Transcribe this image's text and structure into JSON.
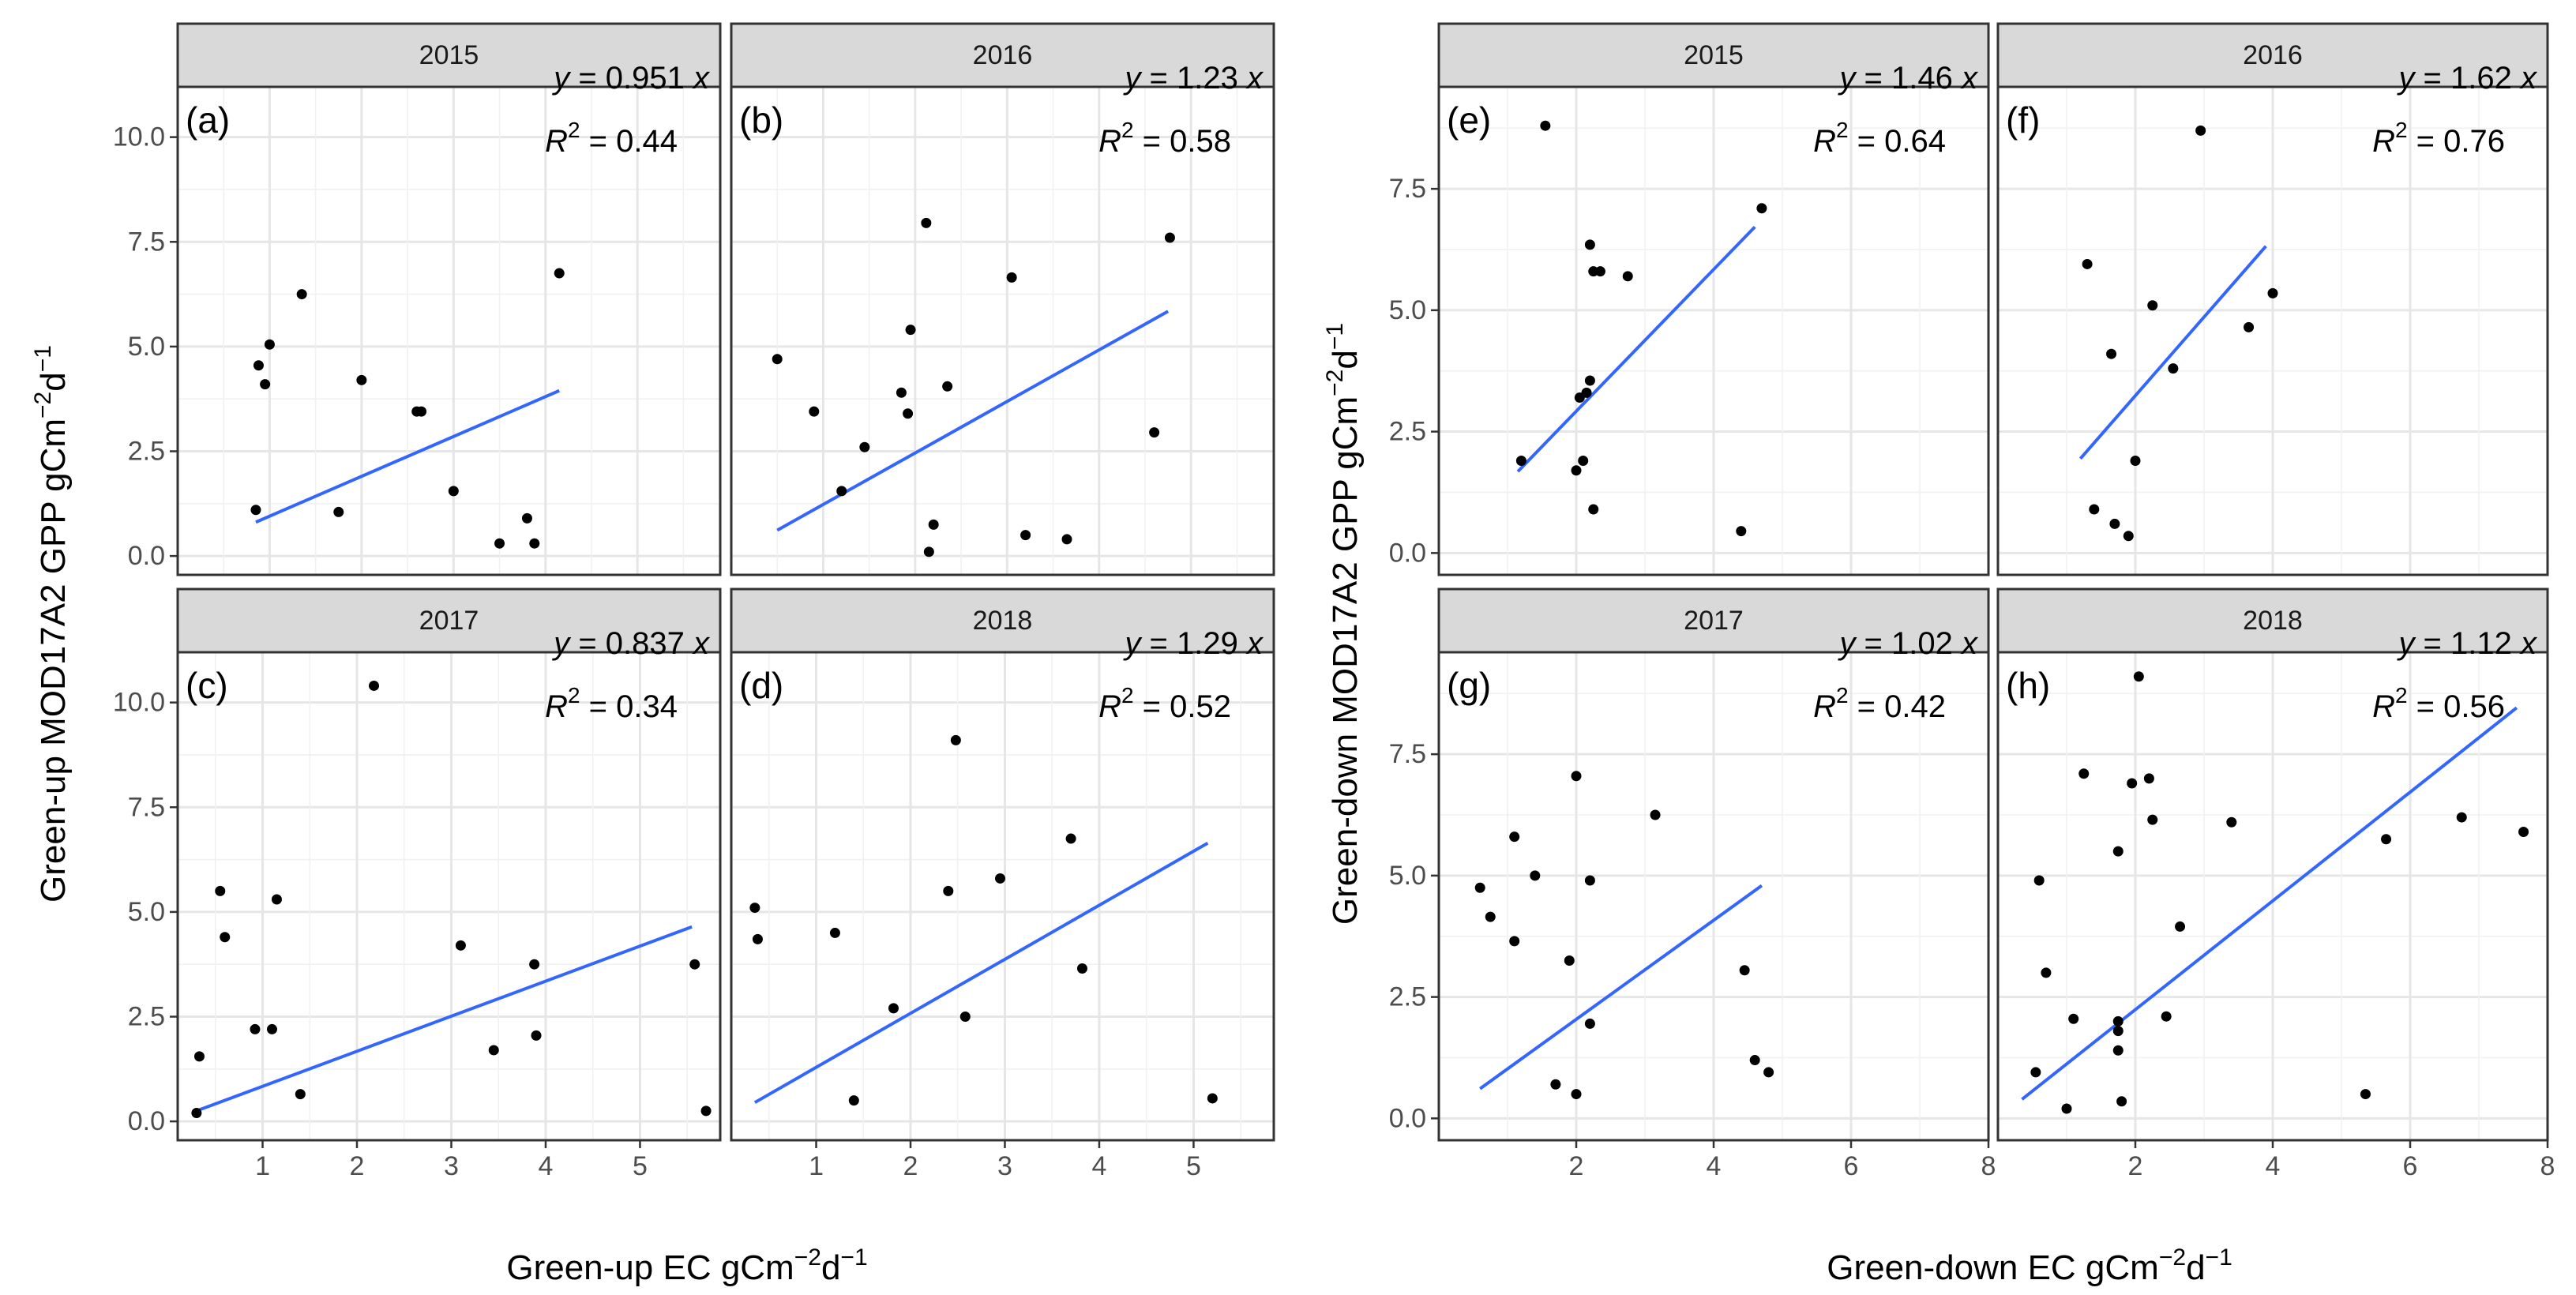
{
  "chart_data": [
    {
      "type": "scatter",
      "group": "green-up",
      "year": "2015",
      "tag": "(a)",
      "equation": {
        "y": "y",
        "rhs": " = 0.951 ",
        "x": "x"
      },
      "r2": {
        "label": "R",
        "sup": "2",
        "value": " = 0.44"
      },
      "slope": 0.951,
      "line_x": [
        0.85,
        4.15
      ],
      "points": [
        [
          0.85,
          1.1
        ],
        [
          0.88,
          4.55
        ],
        [
          0.95,
          4.1
        ],
        [
          1.0,
          5.05
        ],
        [
          1.35,
          6.25
        ],
        [
          1.75,
          1.05
        ],
        [
          2.0,
          4.2
        ],
        [
          2.6,
          3.45
        ],
        [
          2.65,
          3.45
        ],
        [
          3.0,
          1.55
        ],
        [
          3.5,
          0.3
        ],
        [
          3.8,
          0.9
        ],
        [
          3.88,
          0.3
        ],
        [
          4.15,
          6.75
        ]
      ]
    },
    {
      "type": "scatter",
      "group": "green-up",
      "year": "2016",
      "tag": "(b)",
      "equation": {
        "y": "y",
        "rhs": " = 1.23 ",
        "x": "x"
      },
      "r2": {
        "label": "R",
        "sup": "2",
        "value": " = 0.58"
      },
      "slope": 1.23,
      "line_x": [
        0.5,
        4.75
      ],
      "points": [
        [
          0.5,
          4.7
        ],
        [
          0.9,
          3.45
        ],
        [
          1.2,
          1.55
        ],
        [
          1.45,
          2.6
        ],
        [
          1.85,
          3.9
        ],
        [
          1.92,
          3.4
        ],
        [
          1.95,
          5.4
        ],
        [
          2.12,
          7.95
        ],
        [
          2.15,
          0.1
        ],
        [
          2.2,
          0.75
        ],
        [
          2.35,
          4.05
        ],
        [
          3.05,
          6.65
        ],
        [
          3.2,
          0.5
        ],
        [
          3.65,
          0.4
        ],
        [
          4.6,
          2.95
        ],
        [
          4.77,
          7.6
        ]
      ]
    },
    {
      "type": "scatter",
      "group": "green-up",
      "year": "2017",
      "tag": "(c)",
      "equation": {
        "y": "y",
        "rhs": " = 0.837 ",
        "x": "x"
      },
      "r2": {
        "label": "R",
        "sup": "2",
        "value": " = 0.34"
      },
      "slope": 0.837,
      "line_x": [
        0.3,
        5.55
      ],
      "points": [
        [
          0.3,
          0.2
        ],
        [
          0.33,
          1.55
        ],
        [
          0.55,
          5.5
        ],
        [
          0.6,
          4.4
        ],
        [
          0.92,
          2.2
        ],
        [
          1.1,
          2.2
        ],
        [
          1.15,
          5.3
        ],
        [
          1.4,
          0.65
        ],
        [
          2.18,
          10.4
        ],
        [
          3.1,
          4.2
        ],
        [
          3.45,
          1.7
        ],
        [
          3.88,
          3.75
        ],
        [
          3.9,
          2.05
        ],
        [
          5.58,
          3.75
        ],
        [
          5.7,
          0.25
        ]
      ]
    },
    {
      "type": "scatter",
      "group": "green-up",
      "year": "2018",
      "tag": "(d)",
      "equation": {
        "y": "y",
        "rhs": " = 1.29 ",
        "x": "x"
      },
      "r2": {
        "label": "R",
        "sup": "2",
        "value": " = 0.52"
      },
      "slope": 1.29,
      "line_x": [
        0.35,
        5.15
      ],
      "points": [
        [
          0.35,
          5.1
        ],
        [
          0.38,
          4.35
        ],
        [
          1.2,
          4.5
        ],
        [
          1.4,
          0.5
        ],
        [
          1.82,
          2.7
        ],
        [
          2.4,
          5.5
        ],
        [
          2.48,
          9.1
        ],
        [
          2.58,
          2.5
        ],
        [
          2.95,
          5.8
        ],
        [
          3.7,
          6.75
        ],
        [
          3.82,
          3.65
        ],
        [
          5.2,
          0.55
        ]
      ]
    },
    {
      "type": "scatter",
      "group": "green-down",
      "year": "2015",
      "tag": "(e)",
      "equation": {
        "y": "y",
        "rhs": " = 1.46 ",
        "x": "x"
      },
      "r2": {
        "label": "R",
        "sup": "2",
        "value": " = 0.64"
      },
      "slope": 1.46,
      "line_x": [
        1.15,
        4.6
      ],
      "points": [
        [
          1.2,
          1.9
        ],
        [
          1.55,
          8.8
        ],
        [
          2.0,
          1.7
        ],
        [
          2.05,
          3.2
        ],
        [
          2.1,
          1.9
        ],
        [
          2.15,
          3.3
        ],
        [
          2.2,
          6.35
        ],
        [
          2.2,
          3.55
        ],
        [
          2.25,
          0.9
        ],
        [
          2.25,
          5.8
        ],
        [
          2.35,
          5.8
        ],
        [
          2.75,
          5.7
        ],
        [
          4.4,
          0.45
        ],
        [
          4.7,
          7.1
        ]
      ]
    },
    {
      "type": "scatter",
      "group": "green-down",
      "year": "2016",
      "tag": "(f)",
      "equation": {
        "y": "y",
        "rhs": " = 1.62 ",
        "x": "x"
      },
      "r2": {
        "label": "R",
        "sup": "2",
        "value": " = 0.76"
      },
      "slope": 1.62,
      "line_x": [
        1.2,
        3.9
      ],
      "points": [
        [
          1.3,
          5.95
        ],
        [
          1.4,
          0.9
        ],
        [
          1.65,
          4.1
        ],
        [
          1.7,
          0.6
        ],
        [
          1.9,
          0.35
        ],
        [
          2.0,
          1.9
        ],
        [
          2.25,
          5.1
        ],
        [
          2.55,
          3.8
        ],
        [
          2.95,
          8.7
        ],
        [
          3.65,
          4.65
        ],
        [
          4.0,
          5.35
        ]
      ]
    },
    {
      "type": "scatter",
      "group": "green-down",
      "year": "2017",
      "tag": "(g)",
      "equation": {
        "y": "y",
        "rhs": " = 1.02 ",
        "x": "x"
      },
      "r2": {
        "label": "R",
        "sup": "2",
        "value": " = 0.42"
      },
      "slope": 1.02,
      "line_x": [
        0.6,
        4.7
      ],
      "points": [
        [
          0.6,
          4.75
        ],
        [
          0.75,
          4.15
        ],
        [
          1.1,
          5.8
        ],
        [
          1.1,
          3.65
        ],
        [
          1.4,
          5.0
        ],
        [
          1.7,
          0.7
        ],
        [
          1.9,
          3.25
        ],
        [
          2.0,
          7.05
        ],
        [
          2.0,
          0.5
        ],
        [
          2.2,
          4.9
        ],
        [
          2.2,
          1.95
        ],
        [
          3.15,
          6.25
        ],
        [
          4.45,
          3.05
        ],
        [
          4.6,
          1.2
        ],
        [
          4.8,
          0.95
        ]
      ]
    },
    {
      "type": "scatter",
      "group": "green-down",
      "year": "2018",
      "tag": "(h)",
      "equation": {
        "y": "y",
        "rhs": " = 1.12 ",
        "x": "x"
      },
      "r2": {
        "label": "R",
        "sup": "2",
        "value": " = 0.56"
      },
      "slope": 1.12,
      "line_x": [
        0.35,
        7.55
      ],
      "points": [
        [
          0.55,
          0.95
        ],
        [
          0.6,
          4.9
        ],
        [
          0.7,
          3.0
        ],
        [
          1.0,
          0.2
        ],
        [
          1.1,
          2.05
        ],
        [
          1.25,
          7.1
        ],
        [
          1.75,
          5.5
        ],
        [
          1.75,
          2.0
        ],
        [
          1.75,
          1.8
        ],
        [
          1.75,
          1.4
        ],
        [
          1.8,
          0.35
        ],
        [
          1.95,
          6.9
        ],
        [
          2.05,
          9.1
        ],
        [
          2.2,
          7.0
        ],
        [
          2.25,
          6.15
        ],
        [
          2.45,
          2.1
        ],
        [
          2.65,
          3.95
        ],
        [
          3.4,
          6.1
        ],
        [
          5.35,
          0.5
        ],
        [
          5.65,
          5.75
        ],
        [
          6.75,
          6.2
        ],
        [
          7.65,
          5.9
        ]
      ]
    }
  ],
  "axes": {
    "left_y_ticks": [
      "0.0",
      "2.5",
      "5.0",
      "7.5",
      "10.0"
    ],
    "left_x_ticks": [
      "1",
      "2",
      "3",
      "4",
      "5"
    ],
    "right_y_ticks": [
      "0.0",
      "2.5",
      "5.0",
      "7.5"
    ],
    "right_x_ticks": [
      "2",
      "4",
      "6",
      "8"
    ],
    "left_ylim": [
      -0.45,
      11.2
    ],
    "left_xlim_top": [
      0.0,
      5.9
    ],
    "left_xlim_bottom": [
      0.1,
      5.85
    ],
    "right_ylim": [
      -0.45,
      9.6
    ],
    "right_xlim": [
      0.0,
      8.0
    ],
    "left_xlabel": {
      "main": "Green-up EC gCm",
      "sup1": "−2",
      "mid": "d",
      "sup2": "−1"
    },
    "left_ylabel": {
      "main": "Green-up MOD17A2 GPP  gCm",
      "sup1": "−2",
      "mid": "d",
      "sup2": "−1"
    },
    "right_xlabel": {
      "main": "Green-down EC gCm",
      "sup1": "−2",
      "mid": "d",
      "sup2": "−1"
    },
    "right_ylabel": {
      "main": "Green-down MOD17A2 GPP  gCm",
      "sup1": "−2",
      "mid": "d",
      "sup2": "−1"
    }
  },
  "colors": {
    "fit_line": "#3366ff",
    "points": "#000000",
    "strip": "#d9d9d9"
  }
}
